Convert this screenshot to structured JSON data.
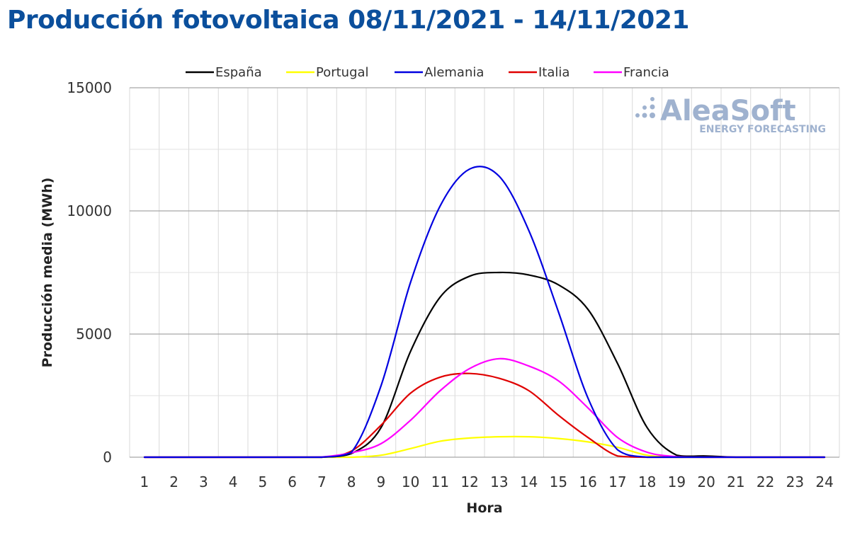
{
  "title": "Producción fotovoltaica 08/11/2021 - 14/11/2021",
  "logo": {
    "name": "AleaSoft",
    "tagline": "ENERGY FORECASTING"
  },
  "chart_data": {
    "type": "line",
    "xlabel": "Hora",
    "ylabel": "Producción media (MWh)",
    "xlim": [
      1,
      24
    ],
    "ylim": [
      0,
      15000
    ],
    "yticks": [
      0,
      5000,
      10000,
      15000
    ],
    "grid": true,
    "legend": "top",
    "x": [
      1,
      2,
      3,
      4,
      5,
      6,
      7,
      8,
      9,
      10,
      11,
      12,
      13,
      14,
      15,
      16,
      17,
      18,
      19,
      20,
      21,
      22,
      23,
      24
    ],
    "series": [
      {
        "name": "España",
        "color": "#000000",
        "values": [
          0,
          0,
          0,
          0,
          0,
          0,
          0,
          150,
          1200,
          4300,
          6500,
          7350,
          7500,
          7400,
          7000,
          6000,
          3800,
          1200,
          80,
          50,
          0,
          0,
          0,
          0
        ]
      },
      {
        "name": "Portugal",
        "color": "#ffff00",
        "values": [
          0,
          0,
          0,
          0,
          0,
          0,
          0,
          0,
          80,
          350,
          650,
          780,
          830,
          830,
          760,
          620,
          400,
          80,
          0,
          0,
          0,
          0,
          0,
          0
        ]
      },
      {
        "name": "Alemania",
        "color": "#0000e0",
        "values": [
          0,
          0,
          0,
          0,
          0,
          0,
          0,
          200,
          2900,
          7100,
          10200,
          11700,
          11400,
          9200,
          5900,
          2400,
          300,
          0,
          0,
          0,
          0,
          0,
          0,
          0
        ]
      },
      {
        "name": "Italia",
        "color": "#e00000",
        "values": [
          0,
          0,
          0,
          0,
          0,
          0,
          0,
          250,
          1300,
          2600,
          3250,
          3400,
          3200,
          2700,
          1700,
          800,
          50,
          0,
          0,
          0,
          0,
          0,
          0,
          0
        ]
      },
      {
        "name": "Francia",
        "color": "#ff00ff",
        "values": [
          0,
          0,
          0,
          0,
          0,
          0,
          10,
          180,
          550,
          1500,
          2700,
          3600,
          4000,
          3700,
          3100,
          2000,
          800,
          200,
          20,
          0,
          0,
          0,
          0,
          0
        ]
      }
    ]
  }
}
